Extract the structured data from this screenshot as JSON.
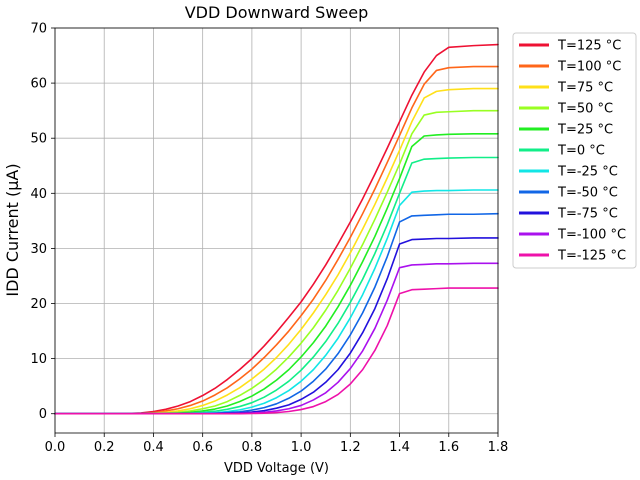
{
  "chart_data": {
    "type": "line",
    "title": "VDD Downward Sweep",
    "xlabel": "VDD Voltage (V)",
    "ylabel": "IDD Current (μA)",
    "xlim": [
      0.0,
      1.8
    ],
    "ylim": [
      -3.5,
      70
    ],
    "xticks": [
      0.0,
      0.2,
      0.4,
      0.6,
      0.8,
      1.0,
      1.2,
      1.4,
      1.6,
      1.8
    ],
    "xtick_labels": [
      "0.0",
      "0.2",
      "0.4",
      "0.6",
      "0.8",
      "1.0",
      "1.2",
      "1.4",
      "1.6",
      "1.8"
    ],
    "yticks": [
      0,
      10,
      20,
      30,
      40,
      50,
      60,
      70
    ],
    "ytick_labels": [
      "0",
      "10",
      "20",
      "30",
      "40",
      "50",
      "60",
      "70"
    ],
    "grid": true,
    "legend_position": "outside-top-right",
    "x": [
      0.0,
      0.1,
      0.2,
      0.3,
      0.35,
      0.4,
      0.45,
      0.5,
      0.55,
      0.6,
      0.65,
      0.7,
      0.75,
      0.8,
      0.85,
      0.9,
      0.95,
      1.0,
      1.05,
      1.1,
      1.15,
      1.2,
      1.25,
      1.3,
      1.35,
      1.4,
      1.45,
      1.5,
      1.55,
      1.6,
      1.7,
      1.8
    ],
    "series": [
      {
        "name": "T=125 °C",
        "color": "#ee1133",
        "values": [
          0,
          0,
          0,
          0.05,
          0.15,
          0.4,
          0.8,
          1.4,
          2.2,
          3.3,
          4.6,
          6.2,
          8.0,
          10.0,
          12.3,
          14.8,
          17.5,
          20.3,
          23.5,
          27.0,
          30.8,
          34.8,
          39.0,
          43.5,
          48.2,
          53.0,
          57.8,
          62.0,
          65.0,
          66.5,
          66.8,
          67.0
        ]
      },
      {
        "name": "T=100 °C",
        "color": "#ff6619",
        "values": [
          0,
          0,
          0,
          0,
          0.05,
          0.2,
          0.5,
          0.9,
          1.5,
          2.3,
          3.4,
          4.7,
          6.3,
          8.1,
          10.2,
          12.5,
          15.0,
          17.8,
          20.8,
          24.2,
          28.0,
          32.0,
          36.3,
          40.8,
          45.6,
          50.5,
          55.5,
          59.8,
          62.3,
          62.8,
          63.0,
          63.0
        ]
      },
      {
        "name": "T=75 °C",
        "color": "#ffe01a",
        "values": [
          0,
          0,
          0,
          0,
          0,
          0.1,
          0.25,
          0.5,
          0.9,
          1.5,
          2.3,
          3.4,
          4.7,
          6.3,
          8.1,
          10.2,
          12.6,
          15.3,
          18.3,
          21.6,
          25.2,
          29.2,
          33.5,
          38.0,
          42.8,
          47.8,
          53.0,
          57.3,
          58.5,
          58.8,
          59.0,
          59.0
        ]
      },
      {
        "name": "T=50 °C",
        "color": "#99ff22",
        "values": [
          0,
          0,
          0,
          0,
          0,
          0,
          0.1,
          0.25,
          0.5,
          0.9,
          1.4,
          2.2,
          3.3,
          4.6,
          6.2,
          8.1,
          10.3,
          12.8,
          15.6,
          18.8,
          22.4,
          26.4,
          30.7,
          35.3,
          40.2,
          45.3,
          50.8,
          54.2,
          54.7,
          54.8,
          55.0,
          55.0
        ]
      },
      {
        "name": "T=25 °C",
        "color": "#22ee22",
        "values": [
          0,
          0,
          0,
          0,
          0,
          0,
          0,
          0.1,
          0.25,
          0.5,
          0.85,
          1.4,
          2.2,
          3.2,
          4.5,
          6.1,
          8.0,
          10.3,
          12.9,
          15.9,
          19.4,
          23.3,
          27.6,
          32.2,
          37.3,
          42.7,
          48.5,
          50.4,
          50.6,
          50.7,
          50.8,
          50.8
        ]
      },
      {
        "name": "T=0 °C",
        "color": "#11ee88",
        "values": [
          0,
          0,
          0,
          0,
          0,
          0,
          0,
          0,
          0.1,
          0.25,
          0.45,
          0.8,
          1.3,
          2.0,
          3.0,
          4.3,
          5.9,
          7.9,
          10.3,
          13.1,
          16.4,
          20.2,
          24.4,
          29.1,
          34.3,
          40.0,
          45.5,
          46.2,
          46.3,
          46.4,
          46.5,
          46.5
        ]
      },
      {
        "name": "T=-25 °C",
        "color": "#11e6e6",
        "values": [
          0,
          0,
          0,
          0,
          0,
          0,
          0,
          0,
          0,
          0.1,
          0.2,
          0.4,
          0.7,
          1.2,
          1.9,
          2.9,
          4.2,
          5.9,
          8.0,
          10.6,
          13.7,
          17.4,
          21.6,
          26.4,
          31.8,
          37.8,
          40.2,
          40.4,
          40.5,
          40.5,
          40.6,
          40.6
        ]
      },
      {
        "name": "T=-50 °C",
        "color": "#1166e6",
        "values": [
          0,
          0,
          0,
          0,
          0,
          0,
          0,
          0,
          0,
          0,
          0.1,
          0.2,
          0.35,
          0.65,
          1.1,
          1.8,
          2.8,
          4.1,
          5.9,
          8.1,
          10.9,
          14.3,
          18.3,
          23.0,
          28.5,
          34.8,
          35.9,
          36.0,
          36.1,
          36.2,
          36.2,
          36.3
        ]
      },
      {
        "name": "T=-75 °C",
        "color": "#2211dd",
        "values": [
          0,
          0,
          0,
          0,
          0,
          0,
          0,
          0,
          0,
          0,
          0,
          0.1,
          0.15,
          0.3,
          0.55,
          1.0,
          1.6,
          2.6,
          3.9,
          5.7,
          8.0,
          11.0,
          14.7,
          19.1,
          24.5,
          30.8,
          31.6,
          31.7,
          31.8,
          31.8,
          31.9,
          31.9
        ]
      },
      {
        "name": "T=-100 °C",
        "color": "#aa11ee",
        "values": [
          0,
          0,
          0,
          0,
          0,
          0,
          0,
          0,
          0,
          0,
          0,
          0,
          0.05,
          0.12,
          0.25,
          0.5,
          0.9,
          1.5,
          2.5,
          3.8,
          5.7,
          8.2,
          11.4,
          15.5,
          20.6,
          26.5,
          27.0,
          27.1,
          27.2,
          27.2,
          27.3,
          27.3
        ]
      },
      {
        "name": "T=-125 °C",
        "color": "#ee11aa",
        "values": [
          0,
          0,
          0,
          0,
          0,
          0,
          0,
          0,
          0,
          0,
          0,
          0,
          0,
          0.05,
          0.1,
          0.2,
          0.4,
          0.75,
          1.3,
          2.2,
          3.5,
          5.4,
          8.0,
          11.5,
          16.0,
          21.8,
          22.5,
          22.6,
          22.7,
          22.8,
          22.8,
          22.8
        ]
      }
    ]
  }
}
